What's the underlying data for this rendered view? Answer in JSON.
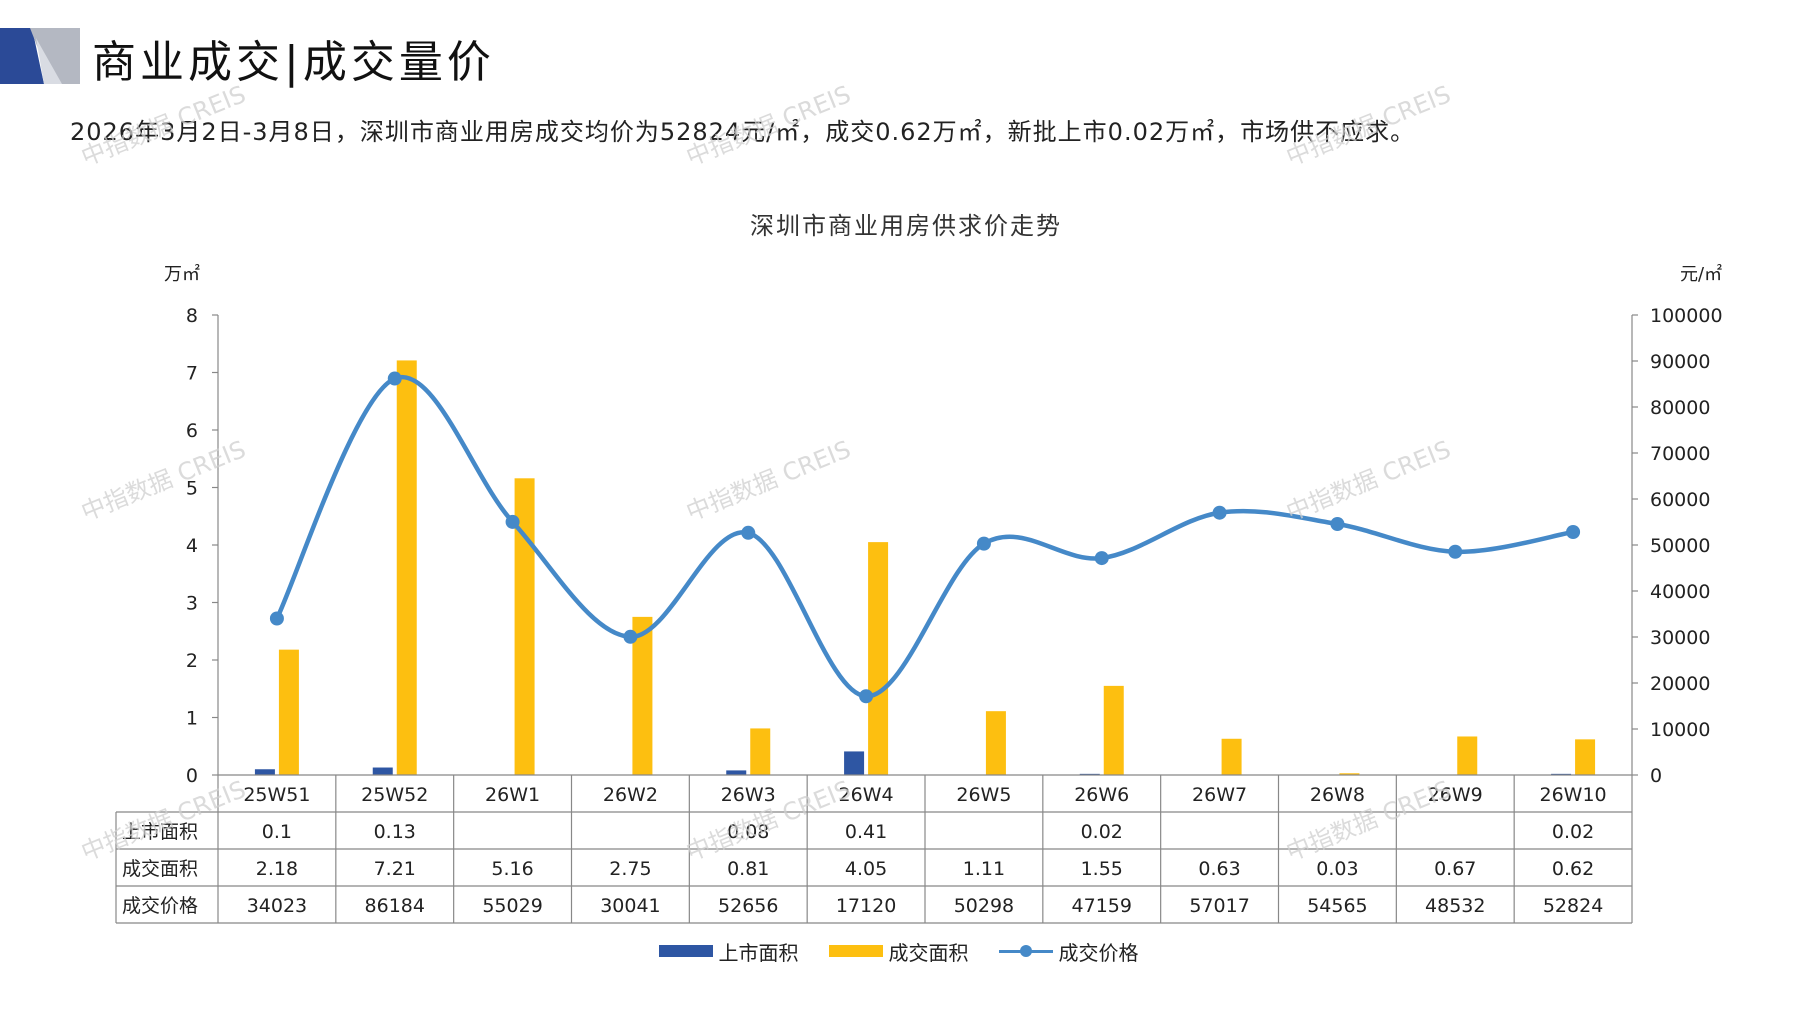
{
  "header": {
    "title": "商业成交|成交量价",
    "summary": "2026年3月2日-3月8日，深圳市商业用房成交均价为52824元/㎡，成交0.62万㎡，新批上市0.02万㎡，市场供不应求。"
  },
  "watermark_text": "中指数据 CREIS",
  "colors": {
    "supply": "#2e56a3",
    "transaction_area": "#fdbf10",
    "price_line": "#4589c8",
    "axis": "#888888",
    "logo_dark": "#2b4a97",
    "logo_grey": "#b4b8c2"
  },
  "chart_data": {
    "type": "bar",
    "combo_line_series": "成交价格",
    "title": "深圳市商业用房供求价走势",
    "left_unit": "万㎡",
    "right_unit": "元/㎡",
    "categories": [
      "25W51",
      "25W52",
      "26W1",
      "26W2",
      "26W3",
      "26W4",
      "26W5",
      "26W6",
      "26W7",
      "26W8",
      "26W9",
      "26W10"
    ],
    "left_ylim": [
      0,
      8
    ],
    "left_ticks": [
      "0",
      "1",
      "2",
      "3",
      "4",
      "5",
      "6",
      "7",
      "8"
    ],
    "right_ylim": [
      0,
      100000
    ],
    "right_ticks": [
      "0",
      "10000",
      "20000",
      "30000",
      "40000",
      "50000",
      "60000",
      "70000",
      "80000",
      "90000",
      "100000"
    ],
    "series": [
      {
        "name": "上市面积",
        "type": "bar",
        "axis": "left",
        "values": [
          0.1,
          0.13,
          null,
          null,
          0.08,
          0.41,
          null,
          0.02,
          null,
          null,
          null,
          0.02
        ],
        "labels": [
          "0.1",
          "0.13",
          "",
          "",
          "0.08",
          "0.41",
          "",
          "0.02",
          "",
          "",
          "",
          "0.02"
        ]
      },
      {
        "name": "成交面积",
        "type": "bar",
        "axis": "left",
        "values": [
          2.18,
          7.21,
          5.16,
          2.75,
          0.81,
          4.05,
          1.11,
          1.55,
          0.63,
          0.03,
          0.67,
          0.62
        ],
        "labels": [
          "2.18",
          "7.21",
          "5.16",
          "2.75",
          "0.81",
          "4.05",
          "1.11",
          "1.55",
          "0.63",
          "0.03",
          "0.67",
          "0.62"
        ]
      },
      {
        "name": "成交价格",
        "type": "line",
        "axis": "right",
        "values": [
          34023,
          86184,
          55029,
          30041,
          52656,
          17120,
          50298,
          47159,
          57017,
          54565,
          48532,
          52824
        ],
        "labels": [
          "34023",
          "86184",
          "55029",
          "30041",
          "52656",
          "17120",
          "50298",
          "47159",
          "57017",
          "54565",
          "48532",
          "52824"
        ]
      }
    ],
    "legend_position": "bottom",
    "data_table": true
  }
}
